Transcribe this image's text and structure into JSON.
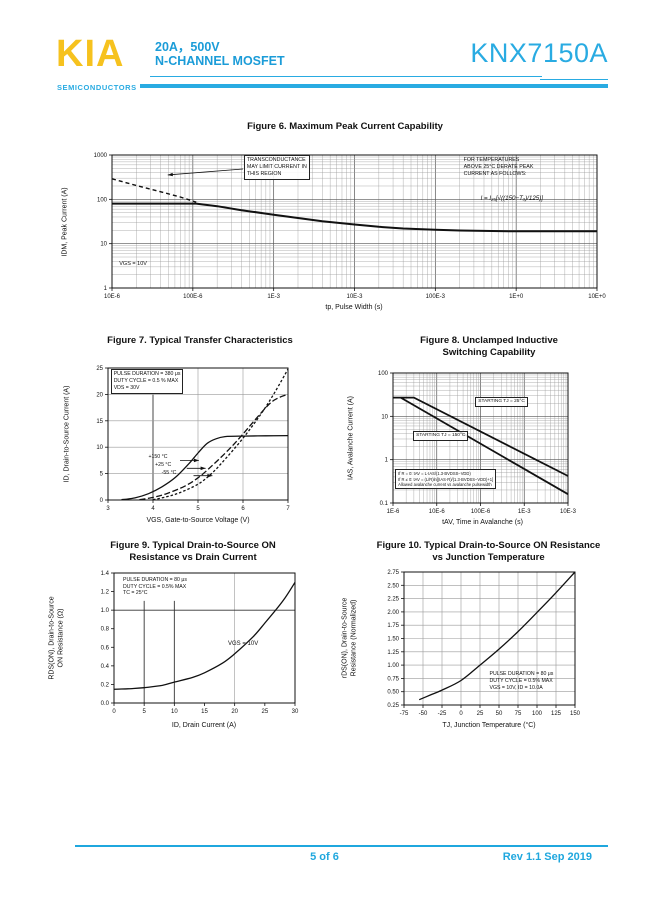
{
  "header": {
    "logo": "KIA",
    "logo_sub": "SEMICONDUCTORS",
    "rating": "20A，500V",
    "device_type": "N-CHANNEL MOSFET",
    "part_number": "KNX7150A",
    "accent_color": "#29ABE2",
    "logo_color": "#F6C21E"
  },
  "footer": {
    "page": "5 of 6",
    "revision": "Rev 1.1 Sep 2019"
  },
  "chart_data": [
    {
      "type": "line",
      "title": "Figure 6. Maximum Peak Current Capability",
      "xlabel": "tp, Pulse Width (s)",
      "ylabel": "IDM, Peak Current (A)",
      "axes": {
        "x": {
          "scale": "log",
          "min": 1e-05,
          "max": 10,
          "ticks": [
            {
              "v": 1e-05,
              "l": "10E-6"
            },
            {
              "v": 0.0001,
              "l": "100E-6"
            },
            {
              "v": 0.001,
              "l": "1E-3"
            },
            {
              "v": 0.01,
              "l": "10E-3"
            },
            {
              "v": 0.1,
              "l": "100E-3"
            },
            {
              "v": 1,
              "l": "1E+0"
            },
            {
              "v": 10,
              "l": "10E+0"
            }
          ]
        },
        "y": {
          "scale": "log",
          "min": 1,
          "max": 1000,
          "ticks": [
            {
              "v": 1,
              "l": "1"
            },
            {
              "v": 10,
              "l": "10"
            },
            {
              "v": 100,
              "l": "100"
            },
            {
              "v": 1000,
              "l": "1000"
            }
          ]
        }
      },
      "series": [
        {
          "name": "peak current limit VGS 10V",
          "dash": "",
          "w": 2,
          "points": [
            [
              1e-05,
              80
            ],
            [
              0.00011,
              80
            ],
            [
              0.0002,
              70
            ],
            [
              0.0004,
              57
            ],
            [
              0.001,
              45
            ],
            [
              0.002,
              38
            ],
            [
              0.004,
              32
            ],
            [
              0.01,
              27
            ],
            [
              0.02,
              24
            ],
            [
              0.04,
              22
            ],
            [
              0.1,
              20.5
            ],
            [
              0.2,
              19.8
            ],
            [
              0.5,
              19.3
            ],
            [
              1,
              19
            ],
            [
              10,
              19
            ]
          ]
        },
        {
          "name": "transconductance limit",
          "dash": "4,3",
          "w": 1.4,
          "points": [
            [
              1e-05,
              290
            ],
            [
              2e-05,
              205
            ],
            [
              4e-05,
              148
            ],
            [
              7e-05,
              113
            ],
            [
              0.00011,
              86
            ]
          ]
        }
      ],
      "annotations": [
        {
          "fx": 0.272,
          "fy": 0.0,
          "boxed": true,
          "fs": 5.3,
          "lines": [
            "TRANSCONDUCTANCE",
            "MAY LIMIT CURRENT IN",
            "THIS REGION"
          ]
        },
        {
          "fx": 0.725,
          "fy": 0.015,
          "boxed": false,
          "fs": 5.3,
          "lines": [
            "FOR TEMPERATURES",
            "ABOVE 25°C DERATE PEAK",
            "CURRENT AS FOLLOWS:"
          ]
        },
        {
          "fx": 0.76,
          "fy": 0.3,
          "boxed": false,
          "fs": 6.2,
          "italic": true,
          "lines": [
            "I = I₂₅[√((150−Tₐ)/125)]"
          ]
        },
        {
          "fx": 0.015,
          "fy": 0.795,
          "boxed": false,
          "fs": 5.5,
          "lines": [
            "VGS = 10V"
          ]
        }
      ],
      "arrows": [
        {
          "fx1": 0.27,
          "fy1": 0.105,
          "fx2": 0.115,
          "fy2": 0.15
        }
      ]
    },
    {
      "type": "line",
      "title": "Figure 7. Typical Transfer Characteristics",
      "xlabel": "VGS, Gate-to-Source Voltage (V)",
      "ylabel": "ID, Drain-to-Source Current (A)",
      "axes": {
        "x": {
          "scale": "linear",
          "min": 3,
          "max": 7,
          "ticks": [
            {
              "v": 3,
              "l": "3"
            },
            {
              "v": 4,
              "l": "4"
            },
            {
              "v": 5,
              "l": "5"
            },
            {
              "v": 6,
              "l": "6"
            },
            {
              "v": 7,
              "l": "7"
            }
          ]
        },
        "y": {
          "scale": "linear",
          "min": 0,
          "max": 25,
          "ticks": [
            {
              "v": 0,
              "l": "0"
            },
            {
              "v": 5,
              "l": "5"
            },
            {
              "v": 10,
              "l": "10"
            },
            {
              "v": 15,
              "l": "15"
            },
            {
              "v": 20,
              "l": "20"
            },
            {
              "v": 25,
              "l": "25"
            }
          ]
        }
      },
      "grid": {
        "v": [
          {
            "at": 4,
            "to": 20,
            "dark": true
          },
          {
            "at": 5
          },
          {
            "at": 6
          }
        ],
        "h": [
          {
            "at": 5
          },
          {
            "at": 10
          },
          {
            "at": 15
          },
          {
            "at": 20
          }
        ]
      },
      "series": [
        {
          "name": "+150 C",
          "dash": "",
          "w": 1.3,
          "smooth": true,
          "points": [
            [
              3.3,
              0.05
            ],
            [
              3.6,
              0.4
            ],
            [
              3.9,
              1.2
            ],
            [
              4.2,
              2.5
            ],
            [
              4.5,
              4.3
            ],
            [
              4.8,
              6.9
            ],
            [
              5.0,
              8.9
            ],
            [
              5.2,
              10.7
            ],
            [
              5.4,
              11.6
            ],
            [
              5.6,
              12.0
            ],
            [
              6.0,
              12.1
            ],
            [
              6.5,
              12.15
            ],
            [
              7.0,
              12.2
            ]
          ]
        },
        {
          "name": "+25 C",
          "dash": "6,2.5",
          "w": 1.3,
          "smooth": true,
          "points": [
            [
              3.7,
              0.05
            ],
            [
              4.0,
              0.5
            ],
            [
              4.3,
              1.2
            ],
            [
              4.7,
              2.6
            ],
            [
              5.0,
              4.2
            ],
            [
              5.3,
              6.4
            ],
            [
              5.7,
              9.7
            ],
            [
              6.0,
              12.5
            ],
            [
              6.3,
              15.5
            ],
            [
              6.6,
              18.3
            ],
            [
              6.8,
              19.4
            ],
            [
              7.0,
              20.0
            ]
          ]
        },
        {
          "name": "-55 C",
          "dash": "2.5,2",
          "w": 1.3,
          "smooth": true,
          "points": [
            [
              4.0,
              0.05
            ],
            [
              4.3,
              0.6
            ],
            [
              4.6,
              1.4
            ],
            [
              5.0,
              3.0
            ],
            [
              5.3,
              5.0
            ],
            [
              5.6,
              7.7
            ],
            [
              6.0,
              11.7
            ],
            [
              6.4,
              16.3
            ],
            [
              6.7,
              20.3
            ],
            [
              7.0,
              24.8
            ]
          ]
        }
      ],
      "annotations": [
        {
          "fx": 0.015,
          "fy": 0.01,
          "boxed": true,
          "fs": 5.2,
          "lines": [
            "PULSE DURATION = 380 μs",
            "DUTY CYCLE = 0.5 % MAX",
            "VDS = 30V"
          ]
        },
        {
          "fx": 0.225,
          "fy": 0.655,
          "boxed": false,
          "fs": 5.2,
          "lines": [
            "+150 °C"
          ]
        },
        {
          "fx": 0.262,
          "fy": 0.715,
          "boxed": false,
          "fs": 5.2,
          "lines": [
            "+25 °C"
          ]
        },
        {
          "fx": 0.298,
          "fy": 0.772,
          "boxed": false,
          "fs": 5.2,
          "lines": [
            "-55 °C"
          ]
        }
      ],
      "arrows": [
        {
          "fx1": 0.4,
          "fy1": 0.7,
          "fx2": 0.505,
          "fy2": 0.7
        },
        {
          "fx1": 0.4375,
          "fy1": 0.76,
          "fx2": 0.5425,
          "fy2": 0.76
        },
        {
          "fx1": 0.475,
          "fy1": 0.816,
          "fx2": 0.58,
          "fy2": 0.816
        }
      ]
    },
    {
      "type": "line",
      "title": "Figure 8.  Unclamped Inductive\nSwitching Capability",
      "xlabel": "tAV, Time in Avalanche (s)",
      "ylabel": "IAS, Avalanche Current (A)",
      "axes": {
        "x": {
          "scale": "log",
          "min": 1e-06,
          "max": 0.01,
          "ticks": [
            {
              "v": 1e-06,
              "l": "1E-6"
            },
            {
              "v": 1e-05,
              "l": "10E-6"
            },
            {
              "v": 0.0001,
              "l": "100E-6"
            },
            {
              "v": 0.001,
              "l": "1E-3"
            },
            {
              "v": 0.01,
              "l": "10E-3"
            }
          ]
        },
        "y": {
          "scale": "log",
          "min": 0.1,
          "max": 100,
          "ticks": [
            {
              "v": 0.1,
              "l": "0.1"
            },
            {
              "v": 1,
              "l": "1"
            },
            {
              "v": 10,
              "l": "10"
            },
            {
              "v": 100,
              "l": "100"
            }
          ]
        }
      },
      "series": [
        {
          "name": "starting TJ 25C",
          "dash": "",
          "w": 1.8,
          "points": [
            [
              1e-06,
              27
            ],
            [
              3e-06,
              27
            ],
            [
              0.01,
              0.42
            ]
          ]
        },
        {
          "name": "starting TJ 150C",
          "dash": "",
          "w": 1.8,
          "points": [
            [
              1.5e-06,
              27
            ],
            [
              0.01,
              0.16
            ]
          ]
        }
      ],
      "annotations": [
        {
          "fx": 0.47,
          "fy": 0.185,
          "boxed": true,
          "fs": 4.8,
          "lines": [
            "STARTING TJ = 25°C"
          ]
        },
        {
          "fx": 0.115,
          "fy": 0.445,
          "boxed": true,
          "fs": 4.8,
          "lines": [
            "STARTING TJ = 150°C"
          ]
        },
        {
          "fx": 0.012,
          "fy": 0.74,
          "boxed": true,
          "fs": 4.1,
          "lines": [
            "If R = 0: tAV = L·IAS/(1.3·BVDSS−VDD)",
            "If R ≠ 0: tAV = (L/R)ln[(IAS·R)/(1.3·BVDSS−VDD)+1]",
            "Allowed avalanche current vs avalanche pulsewidth"
          ]
        }
      ],
      "arrows": []
    },
    {
      "type": "line",
      "title": "Figure 9.  Typical Drain-to-Source ON\nResistance vs Drain Current",
      "xlabel": "ID, Drain Current (A)",
      "ylabel": "RDS(ON), Drain-to-Source\nON Resistance (Ω)",
      "axes": {
        "x": {
          "scale": "linear",
          "min": 0,
          "max": 30,
          "ticks": [
            {
              "v": 0,
              "l": "0"
            },
            {
              "v": 5,
              "l": "5"
            },
            {
              "v": 10,
              "l": "10"
            },
            {
              "v": 15,
              "l": "15"
            },
            {
              "v": 20,
              "l": "20"
            },
            {
              "v": 25,
              "l": "25"
            },
            {
              "v": 30,
              "l": "30"
            }
          ]
        },
        "y": {
          "scale": "linear",
          "min": 0,
          "max": 1.4,
          "ticks": [
            {
              "v": 0,
              "l": "0.0"
            },
            {
              "v": 0.2,
              "l": "0.2"
            },
            {
              "v": 0.4,
              "l": "0.4"
            },
            {
              "v": 0.6,
              "l": "0.6"
            },
            {
              "v": 0.8,
              "l": "0.8"
            },
            {
              "v": 1.0,
              "l": "1.0"
            },
            {
              "v": 1.2,
              "l": "1.2"
            },
            {
              "v": 1.4,
              "l": "1.4"
            }
          ]
        }
      },
      "grid": {
        "v": [
          {
            "at": 5,
            "to": 1.1,
            "dark": true
          },
          {
            "at": 10,
            "to": 1.1,
            "dark": true
          },
          {
            "at": 20
          }
        ],
        "h": [
          {
            "at": 1.0,
            "dark": true
          }
        ]
      },
      "series": [
        {
          "name": "RDSON vs ID VGS 10V",
          "dash": "",
          "w": 1.3,
          "smooth": true,
          "points": [
            [
              0,
              0.148
            ],
            [
              3,
              0.155
            ],
            [
              5,
              0.165
            ],
            [
              8,
              0.19
            ],
            [
              10,
              0.225
            ],
            [
              13,
              0.275
            ],
            [
              15,
              0.325
            ],
            [
              18,
              0.43
            ],
            [
              20,
              0.53
            ],
            [
              23,
              0.71
            ],
            [
              25,
              0.86
            ],
            [
              28,
              1.1
            ],
            [
              30,
              1.3
            ]
          ]
        }
      ],
      "annotations": [
        {
          "fx": 0.05,
          "fy": 0.03,
          "boxed": false,
          "fs": 5.2,
          "lines": [
            "PULSE DURATION = 80 μs",
            "DUTY CYCLE = 0.5% MAX",
            "TC = 25°C"
          ]
        },
        {
          "fx": 0.63,
          "fy": 0.52,
          "boxed": false,
          "fs": 6.0,
          "lines": [
            "VGS = 10V"
          ]
        }
      ],
      "arrows": []
    },
    {
      "type": "line",
      "title": "Figure 10.  Typical Drain-to-Source ON Resistance\nvs Junction Temperature",
      "xlabel": "TJ, Junction Temperature (°C)",
      "ylabel": "rDS(ON), Drain-to-Source\nResistance (Normalized)",
      "axes": {
        "x": {
          "scale": "linear",
          "min": -75,
          "max": 150,
          "ticks": [
            {
              "v": -75,
              "l": "-75"
            },
            {
              "v": -50,
              "l": "-50"
            },
            {
              "v": -25,
              "l": "-25"
            },
            {
              "v": 0,
              "l": "0"
            },
            {
              "v": 25,
              "l": "25"
            },
            {
              "v": 50,
              "l": "50"
            },
            {
              "v": 75,
              "l": "75"
            },
            {
              "v": 100,
              "l": "100"
            },
            {
              "v": 125,
              "l": "125"
            },
            {
              "v": 150,
              "l": "150"
            }
          ]
        },
        "y": {
          "scale": "linear",
          "min": 0.25,
          "max": 2.75,
          "ticks": [
            {
              "v": 0.25,
              "l": "0.25"
            },
            {
              "v": 0.5,
              "l": "0.50"
            },
            {
              "v": 0.75,
              "l": "0.75"
            },
            {
              "v": 1.0,
              "l": "1.00"
            },
            {
              "v": 1.25,
              "l": "1.25"
            },
            {
              "v": 1.5,
              "l": "1.50"
            },
            {
              "v": 1.75,
              "l": "1.75"
            },
            {
              "v": 2.0,
              "l": "2.00"
            },
            {
              "v": 2.25,
              "l": "2.25"
            },
            {
              "v": 2.5,
              "l": "2.50"
            },
            {
              "v": 2.75,
              "l": "2.75"
            }
          ]
        }
      },
      "grid": {
        "v": [
          -50,
          -25,
          0,
          25,
          50,
          75,
          100,
          125
        ],
        "h": [
          0.5,
          0.75,
          1.0,
          1.25,
          1.5,
          1.75,
          2.0,
          2.25,
          2.5
        ]
      },
      "series": [
        {
          "name": "normalized RDSON vs TJ",
          "dash": "",
          "w": 1.3,
          "smooth": true,
          "points": [
            [
              -55,
              0.35
            ],
            [
              -40,
              0.44
            ],
            [
              -25,
              0.53
            ],
            [
              0,
              0.71
            ],
            [
              25,
              1.0
            ],
            [
              50,
              1.3
            ],
            [
              75,
              1.63
            ],
            [
              100,
              1.99
            ],
            [
              125,
              2.36
            ],
            [
              150,
              2.75
            ]
          ]
        }
      ],
      "annotations": [
        {
          "fx": 0.5,
          "fy": 0.745,
          "boxed": false,
          "fs": 5.2,
          "lines": [
            "PULSE DURATION = 80 μs",
            "DUTY CYCLE = 0.5% MAX",
            "VGS = 10V, ID = 10.0A"
          ]
        }
      ],
      "arrows": []
    }
  ]
}
